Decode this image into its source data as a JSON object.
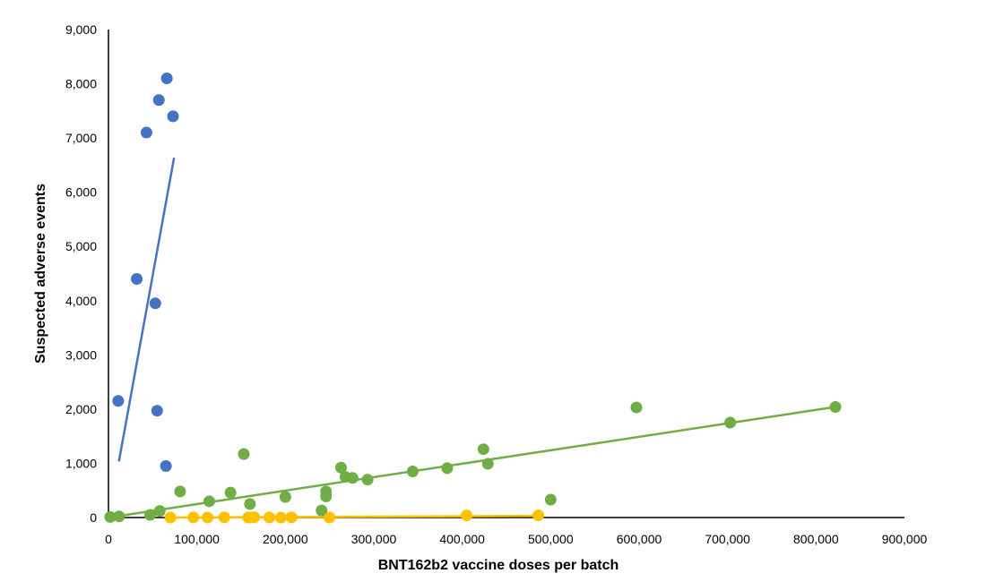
{
  "chart_data": {
    "type": "scatter",
    "title": "",
    "xlabel": "BNT162b2 vaccine doses per batch",
    "ylabel": "Suspected adverse events",
    "xlim": [
      0,
      900000
    ],
    "ylim": [
      0,
      9000
    ],
    "x_ticks": [
      0,
      100000,
      200000,
      300000,
      400000,
      500000,
      600000,
      700000,
      800000,
      900000
    ],
    "x_tick_labels": [
      "0",
      "100,000",
      "200,000",
      "300,000",
      "400,000",
      "500,000",
      "600,000",
      "700,000",
      "800,000",
      "900,000"
    ],
    "y_ticks": [
      0,
      1000,
      2000,
      3000,
      4000,
      5000,
      6000,
      7000,
      8000,
      9000
    ],
    "y_tick_labels": [
      "0",
      "1,000",
      "2,000",
      "3,000",
      "4,000",
      "5,000",
      "6,000",
      "7,000",
      "8,000",
      "9,000"
    ],
    "grid": false,
    "legend": "none",
    "series": [
      {
        "color": "#4472c4",
        "points": [
          [
            11000,
            2150
          ],
          [
            32000,
            4400
          ],
          [
            43000,
            7100
          ],
          [
            53000,
            3950
          ],
          [
            55000,
            1970
          ],
          [
            57000,
            7700
          ],
          [
            66000,
            8100
          ],
          [
            65000,
            950
          ],
          [
            73000,
            7400
          ]
        ],
        "trendline": [
          [
            12000,
            1050
          ],
          [
            74000,
            6620
          ]
        ]
      },
      {
        "color": "#70ad47",
        "points": [
          [
            2000,
            10
          ],
          [
            12000,
            20
          ],
          [
            47000,
            50
          ],
          [
            58000,
            120
          ],
          [
            81000,
            480
          ],
          [
            114000,
            300
          ],
          [
            138000,
            460
          ],
          [
            153000,
            1170
          ],
          [
            160000,
            250
          ],
          [
            200000,
            380
          ],
          [
            241000,
            130
          ],
          [
            246000,
            480
          ],
          [
            246000,
            390
          ],
          [
            263000,
            920
          ],
          [
            268000,
            750
          ],
          [
            276000,
            730
          ],
          [
            293000,
            700
          ],
          [
            344000,
            850
          ],
          [
            383000,
            910
          ],
          [
            424000,
            1260
          ],
          [
            429000,
            990
          ],
          [
            500000,
            330
          ],
          [
            597000,
            2030
          ],
          [
            703000,
            1750
          ],
          [
            822000,
            2040
          ]
        ],
        "trendline": [
          [
            0,
            0
          ],
          [
            822000,
            2040
          ]
        ]
      },
      {
        "color": "#ffc000",
        "points": [
          [
            70000,
            0
          ],
          [
            96000,
            2
          ],
          [
            112000,
            0
          ],
          [
            131000,
            4
          ],
          [
            158000,
            0
          ],
          [
            161000,
            3
          ],
          [
            165000,
            5
          ],
          [
            182000,
            2
          ],
          [
            195000,
            0
          ],
          [
            207000,
            3
          ],
          [
            250000,
            0
          ],
          [
            405000,
            40
          ],
          [
            486000,
            40
          ]
        ],
        "trendline": [
          [
            70000,
            0
          ],
          [
            486000,
            30
          ]
        ]
      }
    ]
  }
}
